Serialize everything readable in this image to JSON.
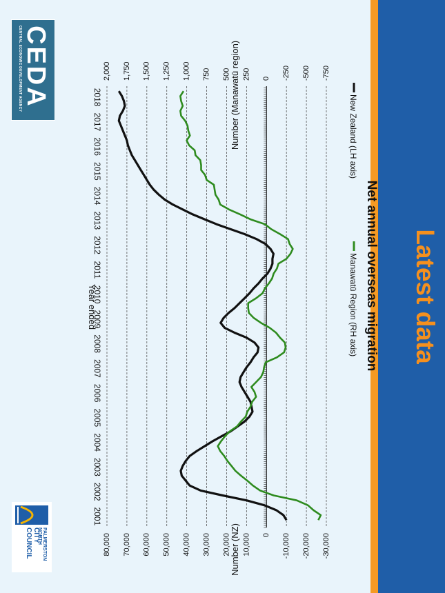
{
  "slide": {
    "title": "Latest data",
    "colors": {
      "title": "#f5901e",
      "band": "#1f5ea8",
      "stripe": "#f59a23",
      "background": "#e9f4fb"
    }
  },
  "logos": {
    "ceda": {
      "wordmark": "CEDA",
      "subtitle": "CENTRAL ECONOMIC DEVELOPMENT AGENCY"
    },
    "pncc": {
      "line1": "PALMERSTON NORTH",
      "line2": "CITY COUNCIL"
    }
  },
  "chart_data": {
    "type": "line",
    "title": "Net annual overseas migration",
    "xlabel": "Year ended",
    "ylabel_left": "Number (NZ)",
    "ylabel_right": "Number (Manawatū region)",
    "x_ticks": [
      "2001",
      "2002",
      "2003",
      "2004",
      "2005",
      "2006",
      "2007",
      "2008",
      "2009",
      "2010",
      "2011",
      "2012",
      "2013",
      "2014",
      "2015",
      "2016",
      "2017",
      "2018"
    ],
    "xlim": [
      2001,
      2018.9
    ],
    "ylim_left": [
      -30000,
      80000
    ],
    "ylim_right": [
      -750,
      2000
    ],
    "left_ticks": [
      "-30,000",
      "-20,000",
      "-10,000",
      "0",
      "10,000",
      "20,000",
      "30,000",
      "40,000",
      "50,000",
      "60,000",
      "70,000",
      "80,000"
    ],
    "right_ticks": [
      "-750",
      "-500",
      "-250",
      "0",
      "250",
      "500",
      "750",
      "1,000",
      "1,250",
      "1,500",
      "1,750",
      "2,000"
    ],
    "grid": true,
    "legend_position": "top",
    "series": [
      {
        "name": "New Zealand (LH axis)",
        "axis": "left",
        "color": "#111111",
        "x": [
          2001.3,
          2001.5,
          2001.7,
          2001.9,
          2002.1,
          2002.3,
          2002.5,
          2002.7,
          2002.9,
          2003.1,
          2003.3,
          2003.5,
          2003.7,
          2003.9,
          2004.1,
          2004.3,
          2004.5,
          2004.7,
          2004.9,
          2005.1,
          2005.3,
          2005.5,
          2005.7,
          2005.9,
          2006.1,
          2006.3,
          2006.5,
          2006.7,
          2006.9,
          2007.1,
          2007.3,
          2007.5,
          2007.7,
          2007.9,
          2008.1,
          2008.3,
          2008.5,
          2008.7,
          2008.9,
          2009.1,
          2009.3,
          2009.5,
          2009.7,
          2009.9,
          2010.1,
          2010.3,
          2010.5,
          2010.7,
          2010.9,
          2011.1,
          2011.3,
          2011.5,
          2011.7,
          2011.9,
          2012.1,
          2012.3,
          2012.5,
          2012.7,
          2012.9,
          2013.1,
          2013.3,
          2013.5,
          2013.7,
          2013.9,
          2014.1,
          2014.3,
          2014.5,
          2014.7,
          2014.9,
          2015.1,
          2015.3,
          2015.5,
          2015.7,
          2015.9,
          2016.1,
          2016.3,
          2016.5,
          2016.7,
          2016.9,
          2017.1,
          2017.3,
          2017.5,
          2017.7,
          2017.9,
          2018.1,
          2018.3,
          2018.5,
          2018.7
        ],
        "y": [
          -10000,
          -8500,
          -5000,
          1000,
          10000,
          22000,
          33000,
          38500,
          40500,
          42500,
          43000,
          42000,
          40500,
          38500,
          35000,
          31000,
          27000,
          22500,
          18000,
          14500,
          11000,
          8500,
          7000,
          7500,
          8000,
          9500,
          11000,
          12500,
          13500,
          13000,
          11500,
          10000,
          8000,
          6500,
          4500,
          4000,
          6000,
          10000,
          16000,
          21000,
          23000,
          21500,
          19000,
          16000,
          13500,
          11000,
          8500,
          6500,
          4000,
          2000,
          -500,
          -2000,
          -3000,
          -3000,
          -3500,
          -2000,
          500,
          5000,
          11000,
          18000,
          25000,
          31000,
          37000,
          42000,
          47000,
          51000,
          54000,
          56500,
          58500,
          60000,
          61500,
          63000,
          64500,
          66000,
          67500,
          68500,
          69500,
          70000,
          71000,
          72000,
          73000,
          74000,
          73500,
          72000,
          71000,
          71500,
          72500,
          74000
        ]
      },
      {
        "name": "Manawatū Region (RH axis)",
        "axis": "right",
        "color": "#2e8b1e",
        "x": [
          2001.3,
          2001.5,
          2001.7,
          2001.9,
          2002.1,
          2002.3,
          2002.5,
          2002.7,
          2002.9,
          2003.1,
          2003.3,
          2003.5,
          2003.7,
          2003.9,
          2004.1,
          2004.3,
          2004.5,
          2004.7,
          2004.9,
          2005.1,
          2005.3,
          2005.5,
          2005.7,
          2005.9,
          2006.1,
          2006.3,
          2006.5,
          2006.7,
          2006.9,
          2007.1,
          2007.3,
          2007.5,
          2007.7,
          2007.9,
          2008.1,
          2008.3,
          2008.5,
          2008.7,
          2008.9,
          2009.1,
          2009.3,
          2009.5,
          2009.7,
          2009.9,
          2010.1,
          2010.3,
          2010.5,
          2010.7,
          2010.9,
          2011.1,
          2011.3,
          2011.5,
          2011.7,
          2011.9,
          2012.1,
          2012.3,
          2012.5,
          2012.7,
          2012.9,
          2013.1,
          2013.3,
          2013.5,
          2013.7,
          2013.9,
          2014.1,
          2014.3,
          2014.5,
          2014.7,
          2014.9,
          2015.1,
          2015.3,
          2015.5,
          2015.7,
          2015.9,
          2016.1,
          2016.3,
          2016.5,
          2016.7,
          2016.9,
          2017.1,
          2017.3,
          2017.5,
          2017.7,
          2017.9,
          2018.1,
          2018.3,
          2018.5,
          2018.7
        ],
        "y": [
          -650,
          -680,
          -590,
          -520,
          -380,
          -90,
          80,
          170,
          240,
          320,
          390,
          440,
          490,
          530,
          580,
          610,
          570,
          520,
          460,
          370,
          320,
          260,
          240,
          200,
          180,
          130,
          150,
          190,
          130,
          70,
          40,
          30,
          10,
          -130,
          -220,
          -240,
          -230,
          -170,
          -120,
          -40,
          70,
          160,
          220,
          230,
          230,
          130,
          50,
          20,
          -30,
          -70,
          -90,
          -130,
          -150,
          -250,
          -300,
          -330,
          -290,
          -270,
          -170,
          -60,
          20,
          200,
          330,
          470,
          580,
          600,
          640,
          650,
          660,
          750,
          770,
          820,
          820,
          830,
          890,
          900,
          970,
          1000,
          960,
          980,
          990,
          1020,
          1070,
          1080,
          1050,
          1070,
          1080,
          1040
        ]
      }
    ]
  }
}
